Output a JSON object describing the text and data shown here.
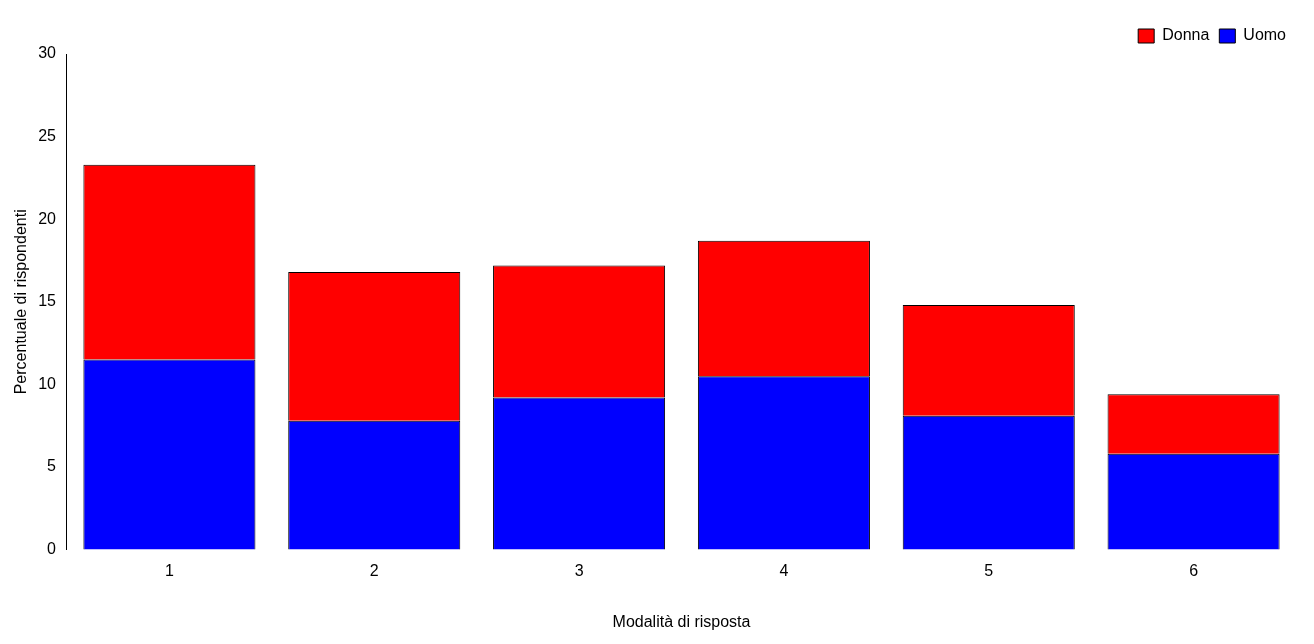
{
  "chart_data": {
    "type": "bar",
    "xlabel": "Modalità di risposta",
    "ylabel": "Percentuale di rispondenti",
    "categories": [
      "1",
      "2",
      "3",
      "4",
      "5",
      "6"
    ],
    "stacked": true,
    "ylim": [
      0,
      30
    ],
    "yticks": [
      0,
      5,
      10,
      15,
      20,
      25,
      30
    ],
    "grid": false,
    "legend": "top right",
    "series": [
      {
        "name": "Uomo",
        "color": "#0000ff",
        "values": [
          11.5,
          7.8,
          9.2,
          10.5,
          8.1,
          5.8
        ]
      },
      {
        "name": "Donna",
        "color": "#ff0000",
        "values": [
          11.8,
          9.0,
          8.0,
          8.2,
          6.7,
          3.6
        ]
      }
    ]
  }
}
